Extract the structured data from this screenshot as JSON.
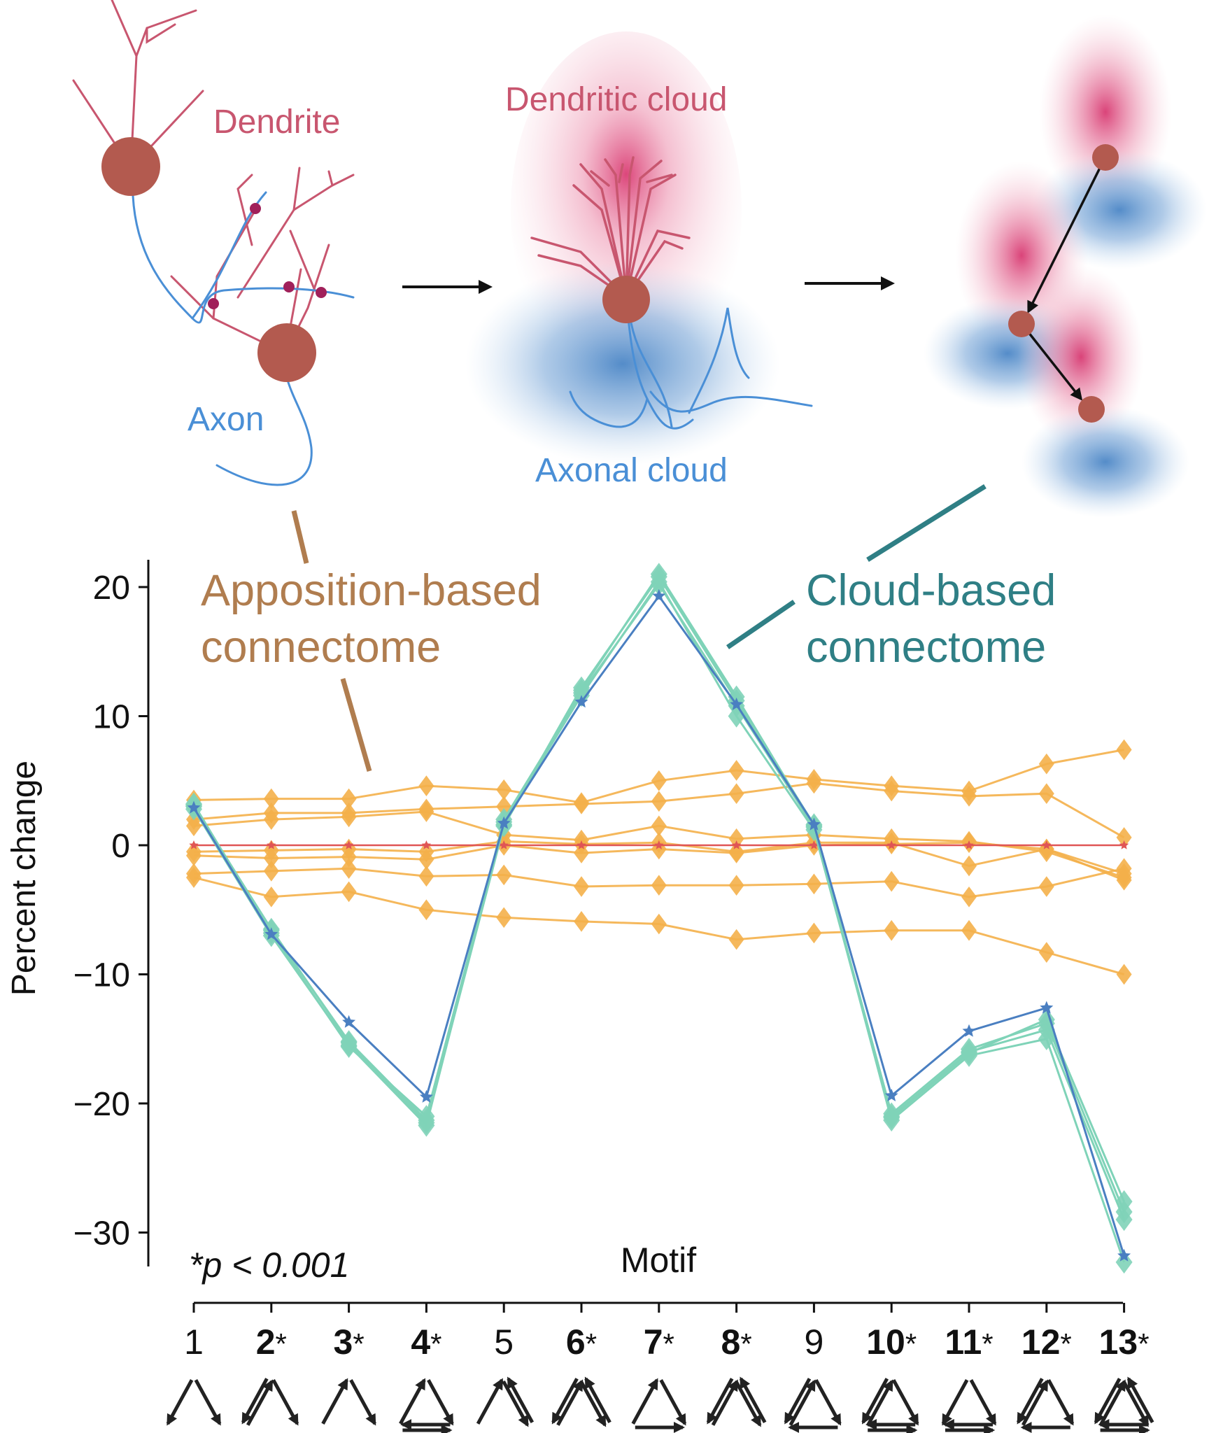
{
  "diagram": {
    "dendrite_label": "Dendrite",
    "axon_label": "Axon",
    "dendritic_cloud_label": "Dendritic cloud",
    "axonal_cloud_label": "Axonal cloud",
    "apposition_label": [
      "Apposition-based",
      "connectome"
    ],
    "cloud_label": [
      "Cloud-based",
      "connectome"
    ]
  },
  "colors": {
    "dendrite": "#c8566f",
    "axon": "#4a8fd6",
    "soma": "#b35a4f",
    "synapse": "#a0205a",
    "apposition": "#b07d4f",
    "cloud": "#2f7f85",
    "orange_series": "#f4b04a",
    "teal_series": "#7fd3b8",
    "blue_series": "#4a7fc1",
    "reference": "#e05555"
  },
  "annotation": "*p < 0.001",
  "chart_data": {
    "type": "line",
    "xlabel": "Motif",
    "ylabel": "Percent change",
    "ylim": [
      -32,
      22
    ],
    "yticks": [
      20,
      10,
      0,
      -10,
      -20,
      -30
    ],
    "grid": false,
    "categories": [
      "1",
      "2",
      "3",
      "4",
      "5",
      "6",
      "7",
      "8",
      "9",
      "10",
      "11",
      "12",
      "13"
    ],
    "significant": [
      false,
      true,
      true,
      true,
      false,
      true,
      true,
      true,
      false,
      true,
      true,
      true,
      true
    ],
    "motif_icons": [
      "motif-1-icon",
      "motif-2-icon",
      "motif-3-icon",
      "motif-4-icon",
      "motif-5-icon",
      "motif-6-icon",
      "motif-7-icon",
      "motif-8-icon",
      "motif-9-icon",
      "motif-10-icon",
      "motif-11-icon",
      "motif-12-icon",
      "motif-13-icon"
    ],
    "series": [
      {
        "group": "apposition",
        "values": [
          3.5,
          3.6,
          3.6,
          4.6,
          4.3,
          3.3,
          5.0,
          5.8,
          5.1,
          4.6,
          4.2,
          6.3,
          7.4
        ]
      },
      {
        "group": "apposition",
        "values": [
          2.0,
          2.5,
          2.5,
          2.8,
          3.0,
          3.2,
          3.4,
          4.0,
          4.8,
          4.2,
          3.8,
          4.0,
          0.6
        ]
      },
      {
        "group": "apposition",
        "values": [
          1.5,
          2.0,
          2.2,
          2.6,
          0.8,
          0.4,
          1.5,
          0.5,
          0.8,
          0.5,
          0.3,
          -0.5,
          -2.5
        ]
      },
      {
        "group": "apposition",
        "values": [
          -0.5,
          -0.4,
          -0.3,
          -0.5,
          0.3,
          0.1,
          0.2,
          -0.5,
          0.2,
          0.2,
          -1.6,
          -0.3,
          -2.2
        ]
      },
      {
        "group": "apposition",
        "values": [
          -0.8,
          -1.0,
          -0.9,
          -1.1,
          0.0,
          -0.6,
          -0.3,
          -0.6,
          0.0,
          0.1,
          0.2,
          -0.3,
          -2.7
        ]
      },
      {
        "group": "apposition",
        "values": [
          -2.2,
          -2.0,
          -1.8,
          -2.4,
          -2.3,
          -3.2,
          -3.1,
          -3.1,
          -3.0,
          -2.8,
          -4.0,
          -3.2,
          -1.8
        ]
      },
      {
        "group": "apposition",
        "values": [
          -2.5,
          -4.0,
          -3.6,
          -5.0,
          -5.6,
          -5.9,
          -6.1,
          -7.3,
          -6.8,
          -6.6,
          -6.6,
          -8.3,
          -10.0
        ]
      },
      {
        "group": "cloud",
        "values": [
          3.0,
          -6.5,
          -15.3,
          -21.5,
          1.5,
          12.0,
          21.0,
          11.5,
          1.5,
          -21.3,
          -16.3,
          -15.0,
          -32.3
        ]
      },
      {
        "group": "cloud",
        "values": [
          3.2,
          -6.8,
          -15.6,
          -21.0,
          1.8,
          11.6,
          20.4,
          10.0,
          1.2,
          -21.0,
          -16.0,
          -14.3,
          -29.0
        ]
      },
      {
        "group": "cloud",
        "values": [
          2.8,
          -7.0,
          -15.5,
          -21.7,
          2.0,
          11.8,
          20.2,
          10.8,
          1.4,
          -20.8,
          -15.8,
          -13.8,
          -28.4
        ]
      },
      {
        "group": "cloud",
        "values": [
          3.1,
          -6.6,
          -15.2,
          -21.3,
          1.6,
          12.2,
          20.8,
          11.2,
          1.6,
          -21.1,
          -16.1,
          -13.5,
          -27.6
        ]
      },
      {
        "group": "cloud_mean",
        "values": [
          2.9,
          -6.9,
          -13.7,
          -19.5,
          1.7,
          11.1,
          19.3,
          10.9,
          1.6,
          -19.4,
          -14.4,
          -12.6,
          -31.8
        ]
      },
      {
        "group": "reference",
        "values": [
          0,
          0,
          0,
          0,
          0,
          0,
          0,
          0,
          0,
          0,
          0,
          0,
          0
        ]
      }
    ]
  }
}
